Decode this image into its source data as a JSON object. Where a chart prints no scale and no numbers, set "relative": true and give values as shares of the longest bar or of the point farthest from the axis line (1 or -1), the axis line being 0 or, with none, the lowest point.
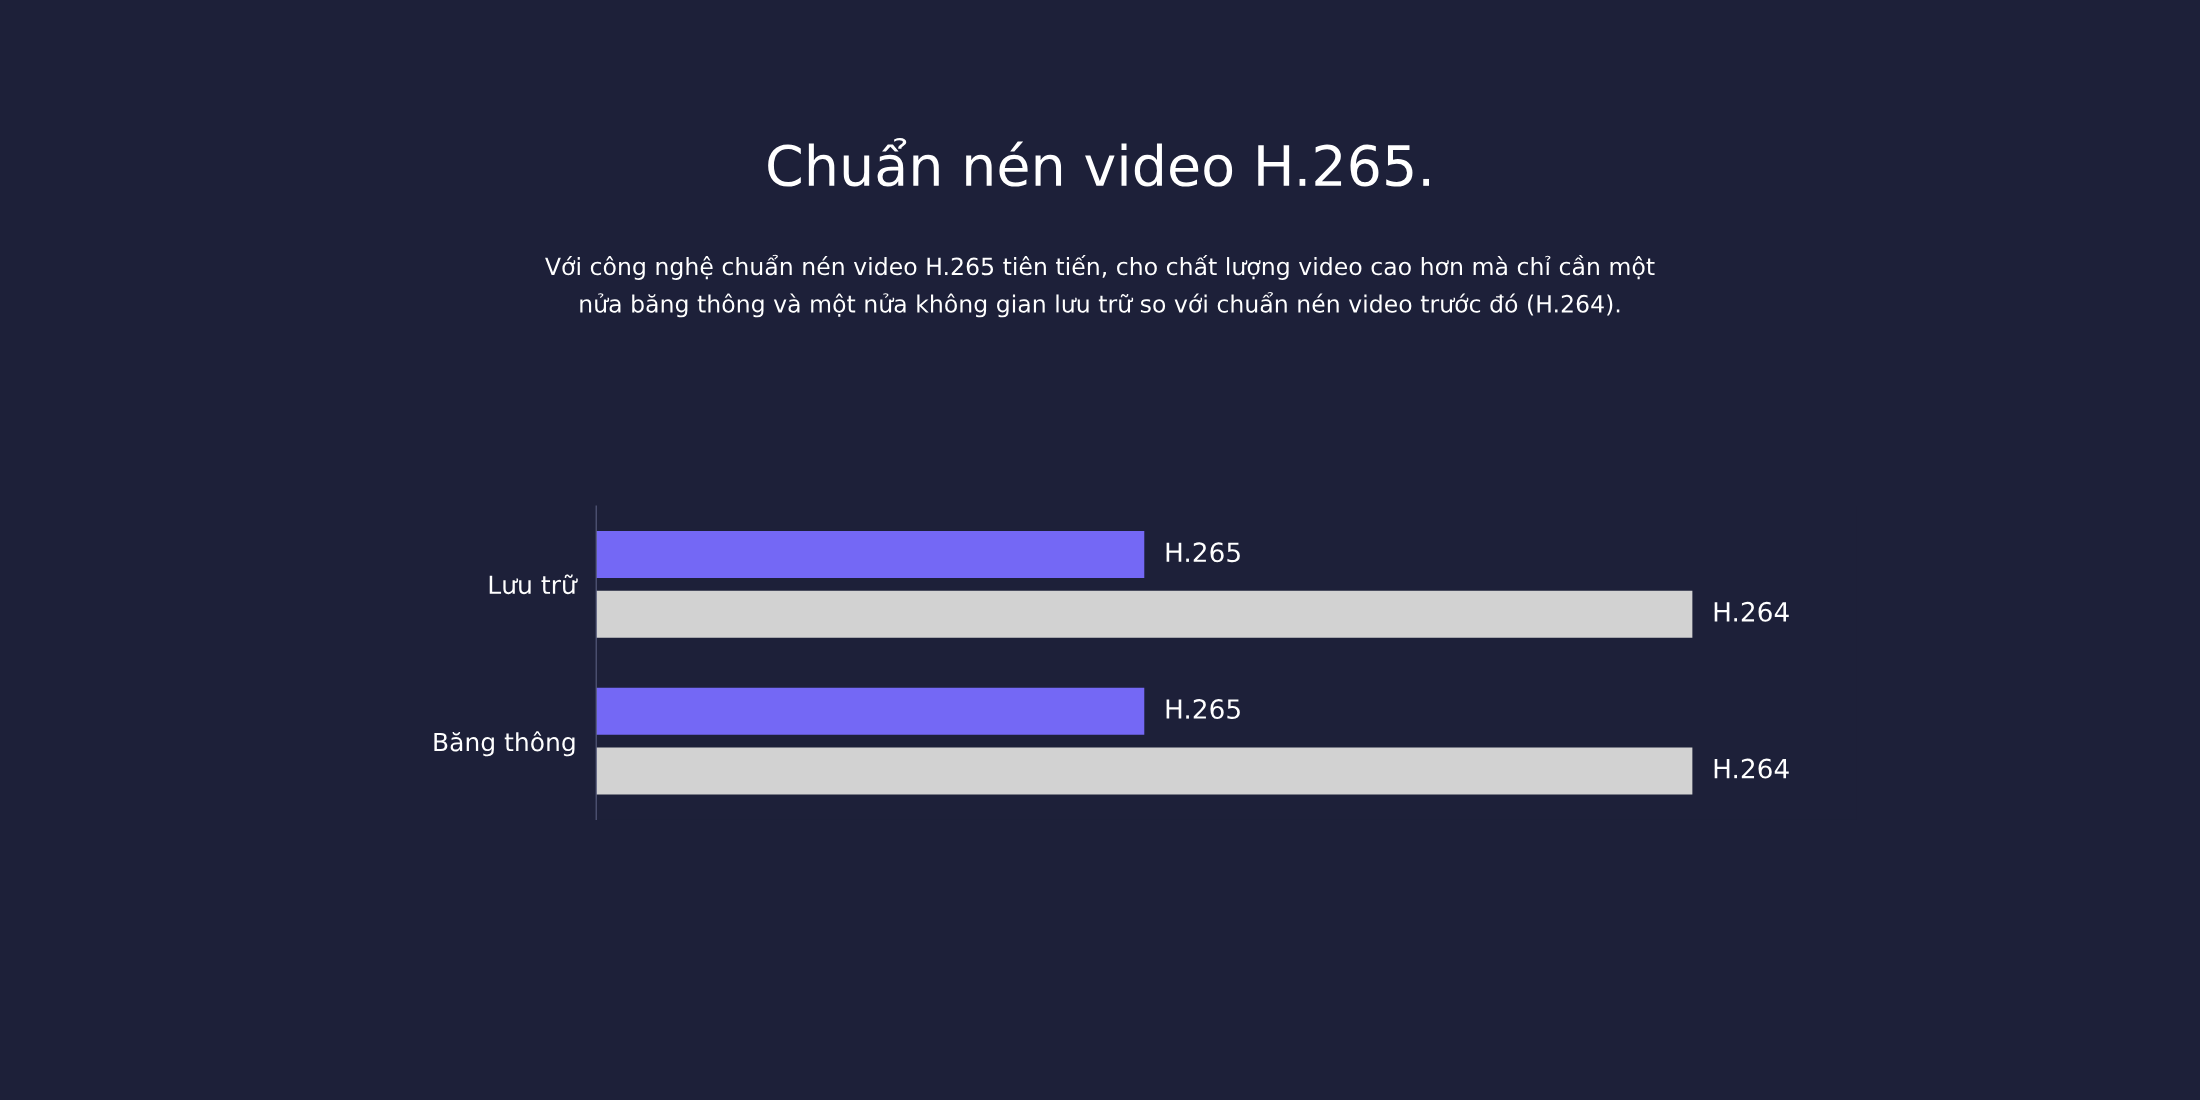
{
  "chart_data": {
    "type": "bar",
    "orientation": "horizontal",
    "relative": true,
    "title": "Chuẩn nén video H.265.",
    "subtitle": "Với công nghệ chuẩn nén video H.265 tiên tiến, cho chất lượng video cao hơn mà chỉ cần một\nnửa băng thông và một nửa không gian lưu trữ so với chuẩn nén video trước đó (H.264).",
    "categories": [
      "Lưu trữ",
      "Băng thông"
    ],
    "series": [
      {
        "name": "H.265",
        "color": "#7468f5",
        "values": [
          0.5,
          0.5
        ]
      },
      {
        "name": "H.264",
        "color": "#d2d2d2",
        "values": [
          1,
          1
        ]
      }
    ],
    "grid": false,
    "legend": false
  }
}
